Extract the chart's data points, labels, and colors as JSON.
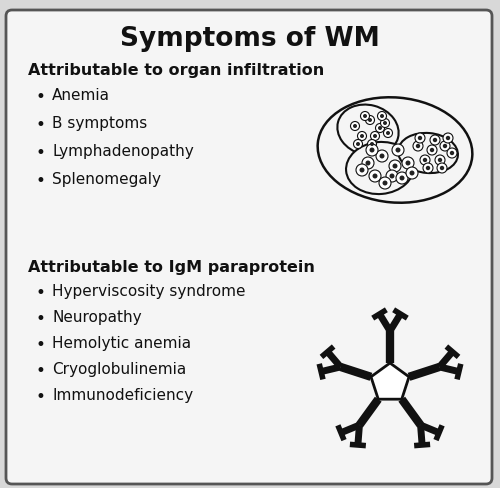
{
  "title": "Symptoms of WM",
  "title_fontsize": 19,
  "title_fontweight": "bold",
  "background_color": "#d8d8d8",
  "box_color": "#f5f5f5",
  "border_color": "#555555",
  "text_color": "#111111",
  "section1_header": "Attributable to organ infiltration",
  "section1_items": [
    "Anemia",
    "B symptoms",
    "Lymphadenopathy",
    "Splenomegaly"
  ],
  "section2_header": "Attributable to IgM paraprotein",
  "section2_items": [
    "Hyperviscosity syndrome",
    "Neuropathy",
    "Hemolytic anemia",
    "Cryoglobulinemia",
    "Immunodeficiency"
  ],
  "header_fontsize": 11.5,
  "item_fontsize": 11,
  "bullet": "•"
}
